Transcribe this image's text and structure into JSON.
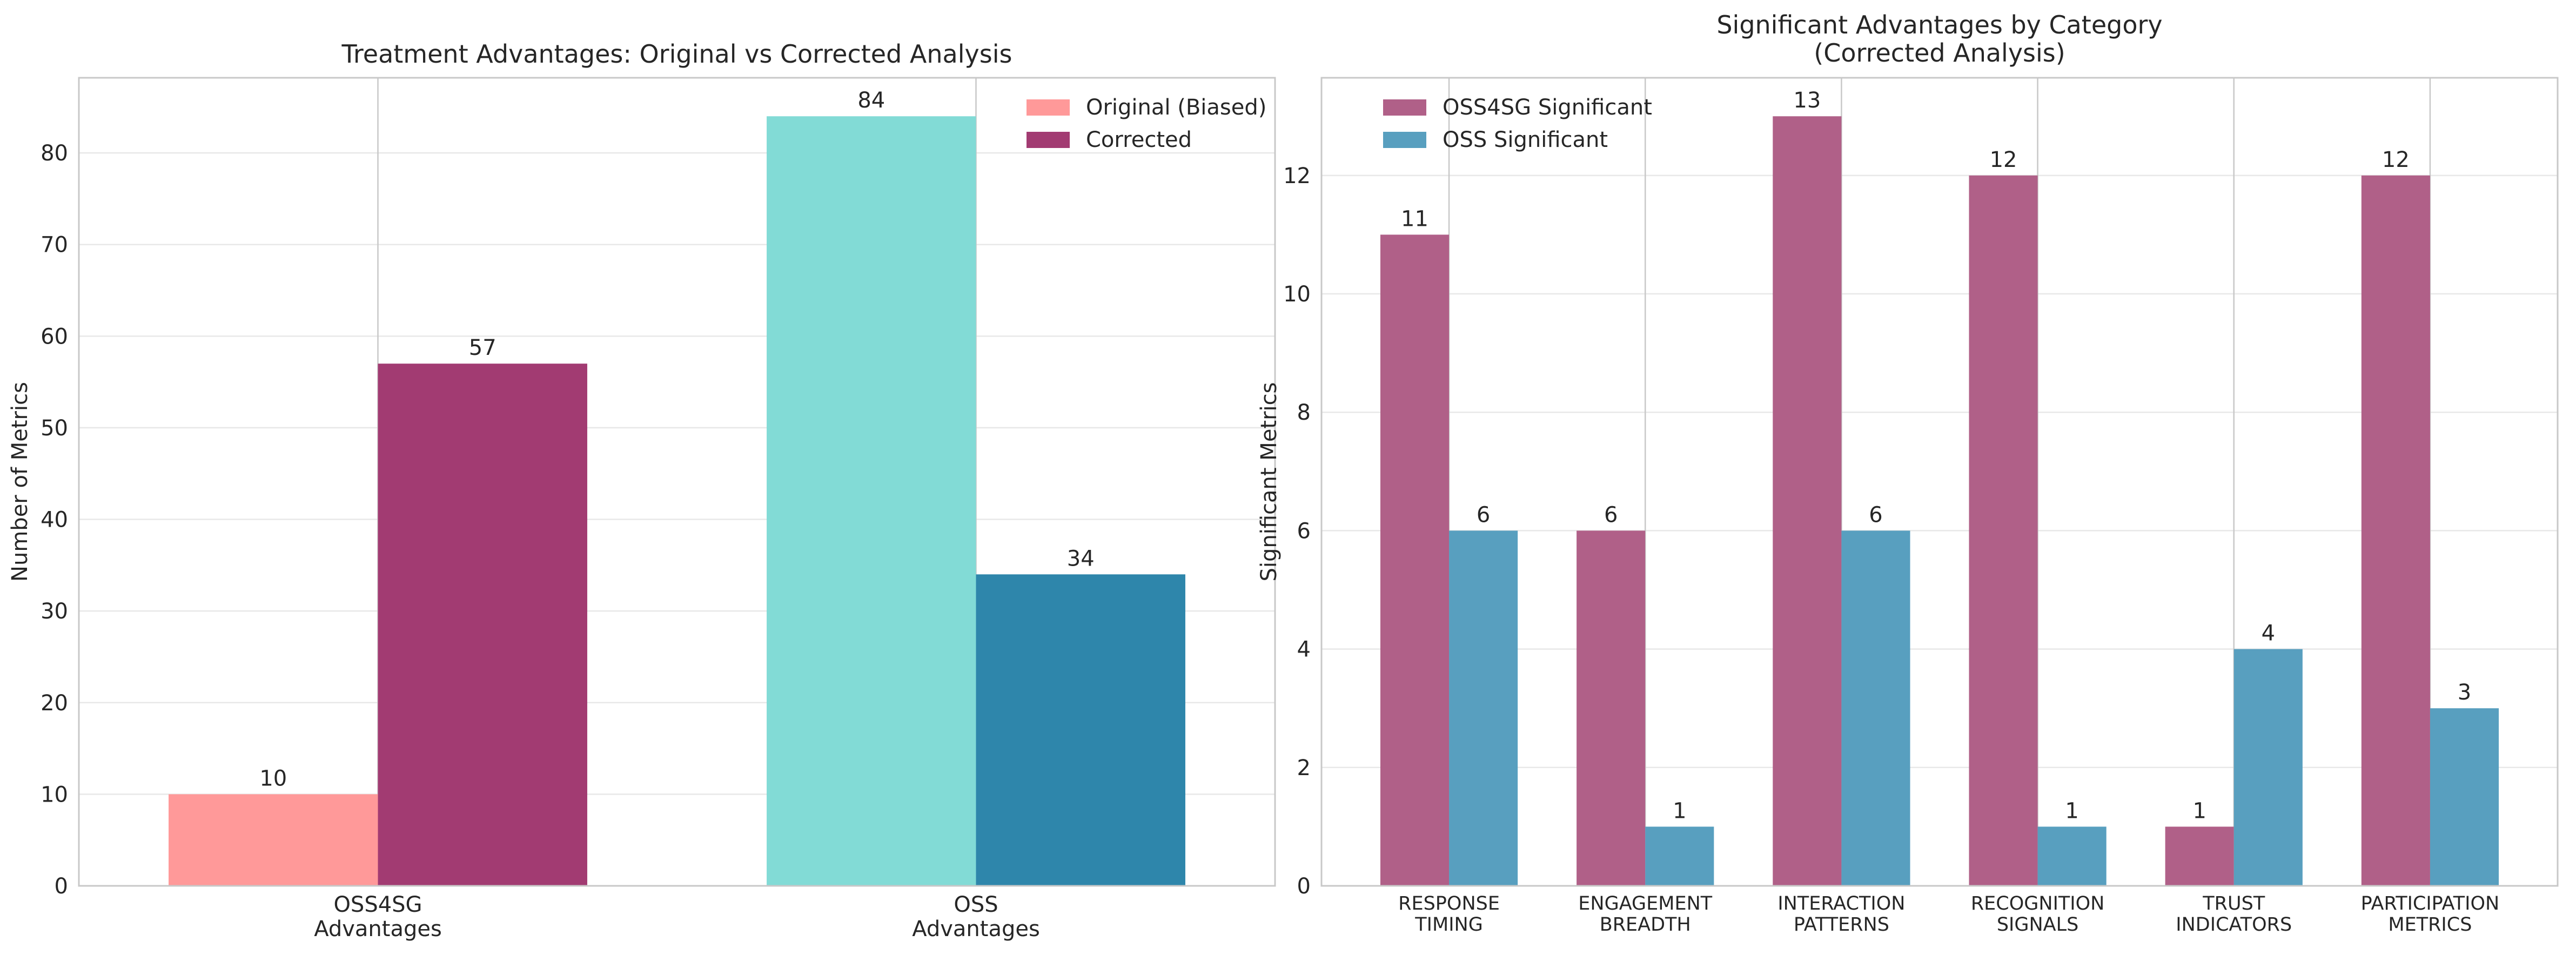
{
  "colors": {
    "original_oss4sg": "#ff9999",
    "original_oss": "#82dbd6",
    "corrected_oss4sg": "#a23b72",
    "corrected_oss": "#2e86ab",
    "oss4sg_significant": "#b06088",
    "oss_significant": "#589fbf",
    "grid": "#e8e8e8",
    "axis": "#c8c8c8",
    "text": "#262626"
  },
  "chart_data": [
    {
      "type": "bar",
      "title": "Treatment Advantages: Original vs Corrected Analysis",
      "ylabel": "Number of Metrics",
      "xlabel": "",
      "categories": [
        [
          "OSS4SG",
          "Advantages"
        ],
        [
          "OSS",
          "Advantages"
        ]
      ],
      "series": [
        {
          "name": "Original (Biased)",
          "values": [
            10,
            84
          ]
        },
        {
          "name": "Corrected",
          "values": [
            57,
            34
          ]
        }
      ],
      "ylim": [
        0,
        88.2
      ],
      "yticks": [
        0,
        10,
        20,
        30,
        40,
        50,
        60,
        70,
        80
      ],
      "grid": true,
      "legend": "top-right"
    },
    {
      "type": "bar",
      "title": [
        "Significant Advantages by Category",
        "(Corrected Analysis)"
      ],
      "ylabel": "Significant Metrics",
      "xlabel": "",
      "categories": [
        [
          "RESPONSE",
          "TIMING"
        ],
        [
          "ENGAGEMENT",
          "BREADTH"
        ],
        [
          "INTERACTION",
          "PATTERNS"
        ],
        [
          "RECOGNITION",
          "SIGNALS"
        ],
        [
          "TRUST",
          "INDICATORS"
        ],
        [
          "PARTICIPATION",
          "METRICS"
        ]
      ],
      "series": [
        {
          "name": "OSS4SG Significant",
          "values": [
            11,
            6,
            13,
            12,
            1,
            12
          ]
        },
        {
          "name": "OSS Significant",
          "values": [
            6,
            1,
            6,
            1,
            4,
            3
          ]
        }
      ],
      "ylim": [
        0,
        13.65
      ],
      "yticks": [
        0,
        2,
        4,
        6,
        8,
        10,
        12
      ],
      "grid": true,
      "legend": "top-left"
    }
  ]
}
